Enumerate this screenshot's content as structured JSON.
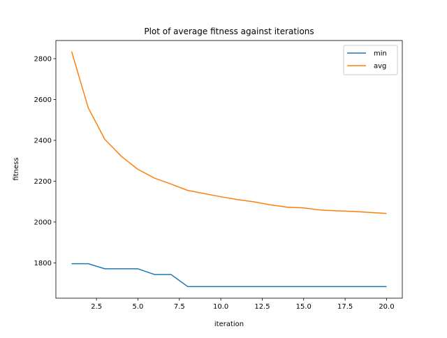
{
  "chart_data": {
    "type": "line",
    "title": "Plot of average fitness against iterations",
    "xlabel": "iteration",
    "ylabel": "fitness",
    "xlim": [
      0.05,
      20.95
    ],
    "ylim": [
      1627,
      2889
    ],
    "xticks": [
      2.5,
      5.0,
      7.5,
      10.0,
      12.5,
      15.0,
      17.5,
      20.0
    ],
    "xtick_labels": [
      "2.5",
      "5.0",
      "7.5",
      "10.0",
      "12.5",
      "15.0",
      "17.5",
      "20.0"
    ],
    "yticks": [
      1800,
      2000,
      2200,
      2400,
      2600,
      2800
    ],
    "ytick_labels": [
      "1800",
      "2000",
      "2200",
      "2400",
      "2600",
      "2800"
    ],
    "x": [
      1,
      2,
      3,
      4,
      5,
      6,
      7,
      8,
      9,
      10,
      11,
      12,
      13,
      14,
      15,
      16,
      17,
      18,
      19,
      20
    ],
    "series": [
      {
        "name": "min",
        "color": "#1f77b4",
        "values": [
          1796,
          1796,
          1771,
          1771,
          1771,
          1743,
          1743,
          1684,
          1684,
          1684,
          1684,
          1684,
          1684,
          1684,
          1684,
          1684,
          1684,
          1684,
          1684,
          1684
        ]
      },
      {
        "name": "avg",
        "color": "#ff7f0e",
        "values": [
          2835,
          2560,
          2405,
          2322,
          2258,
          2215,
          2186,
          2155,
          2139,
          2124,
          2110,
          2099,
          2084,
          2073,
          2069,
          2059,
          2055,
          2052,
          2047,
          2042
        ]
      }
    ],
    "legend": {
      "position": "upper right"
    },
    "grid": false
  }
}
